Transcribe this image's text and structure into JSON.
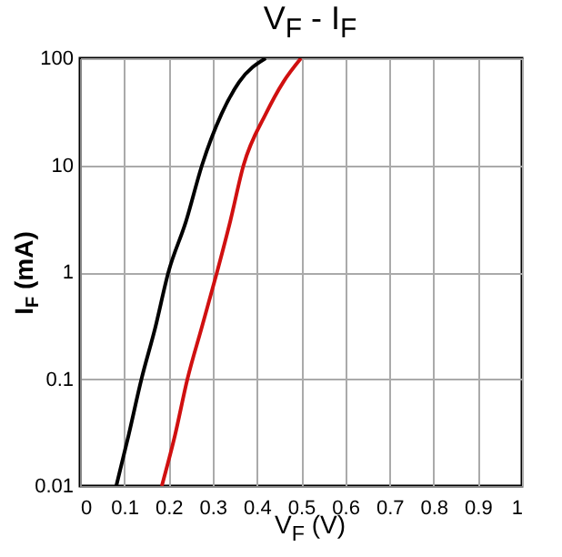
{
  "chart_data": {
    "type": "line",
    "title": "V$_{F}$ - I$_{F}$",
    "xlabel": "V$_{F}$ (V)",
    "ylabel": "I$_{F}$ (mA)",
    "log": "y",
    "grid": true,
    "xlim": [
      0,
      1
    ],
    "xticks": [
      0,
      0.1,
      0.2,
      0.3,
      0.4,
      0.5,
      0.6,
      0.7,
      0.8,
      0.9,
      1
    ],
    "ylim": [
      0.01,
      100
    ],
    "yticks": [
      0.01,
      0.1,
      1,
      10,
      100
    ],
    "series": [
      {
        "color": "#000000",
        "x": [
          0.082,
          0.11,
          0.139,
          0.17,
          0.2,
          0.24,
          0.276,
          0.32,
          0.36,
          0.42
        ],
        "values": [
          0.01,
          0.03,
          0.1,
          0.3,
          1,
          3,
          10,
          30,
          60,
          100
        ]
      },
      {
        "color": "#d01010",
        "x": [
          0.185,
          0.215,
          0.243,
          0.275,
          0.31,
          0.34,
          0.37,
          0.42,
          0.46,
          0.5
        ],
        "values": [
          0.01,
          0.03,
          0.1,
          0.3,
          1,
          3,
          10,
          30,
          60,
          100
        ]
      }
    ]
  }
}
